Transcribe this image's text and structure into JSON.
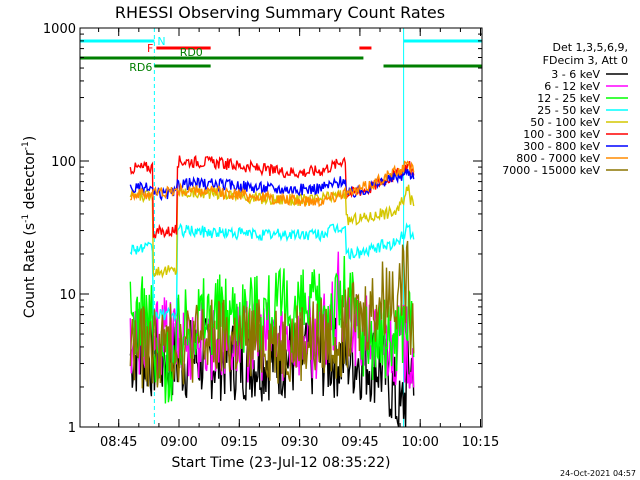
{
  "chart_data": {
    "type": "line",
    "title": "RHESSI Observing Summary Count Rates",
    "xlabel": "Start Time (23-Jul-12 08:35:22)",
    "ylabel_main": "Count Rate (s",
    "ylabel_sup1": "-1",
    "ylabel_mid": " detector",
    "ylabel_sup2": "-1",
    "ylabel_end": ")",
    "yscale": "log",
    "ylim": [
      1,
      1000
    ],
    "xlim_minutes": [
      0,
      100
    ],
    "x_ticks": [
      {
        "label": "08:45",
        "minute": 9.63
      },
      {
        "label": "09:00",
        "minute": 24.63
      },
      {
        "label": "09:15",
        "minute": 39.63
      },
      {
        "label": "09:30",
        "minute": 54.63
      },
      {
        "label": "09:45",
        "minute": 69.63
      },
      {
        "label": "10:00",
        "minute": 84.63
      },
      {
        "label": "10:15",
        "minute": 99.63
      }
    ],
    "y_ticks": [
      {
        "label": "1",
        "value": 1
      },
      {
        "label": "10",
        "value": 10
      },
      {
        "label": "100",
        "value": 100
      },
      {
        "label": "1000",
        "value": 1000
      }
    ],
    "legend_header": [
      "Det 1,3,5,6,9,",
      "FDecim 3, Att 0"
    ],
    "legend_position": "right",
    "series": [
      {
        "name": "3 - 6 keV",
        "color": "#000000",
        "points": [
          [
            12.5,
            3.5
          ],
          [
            18,
            3.3
          ],
          [
            25,
            3.2
          ],
          [
            30,
            3.3
          ],
          [
            40,
            3.2
          ],
          [
            50,
            3.3
          ],
          [
            60,
            3.3
          ],
          [
            66,
            3.4
          ],
          [
            70,
            3.2
          ],
          [
            74,
            3.0
          ],
          [
            77,
            2.2
          ],
          [
            79,
            1.4
          ],
          [
            80,
            1.2
          ],
          [
            81,
            1.6
          ],
          [
            82,
            2.5
          ],
          [
            83,
            3.0
          ]
        ]
      },
      {
        "name": "6 - 12 keV",
        "color": "#ff00ff",
        "points": [
          [
            12.5,
            4.8
          ],
          [
            18,
            4.8
          ],
          [
            25,
            4.5
          ],
          [
            30,
            4.6
          ],
          [
            40,
            4.5
          ],
          [
            50,
            4.6
          ],
          [
            60,
            4.8
          ],
          [
            64,
            6.5
          ],
          [
            65,
            10
          ],
          [
            66,
            5.5
          ],
          [
            70,
            5
          ],
          [
            74,
            4.5
          ],
          [
            77,
            4.3
          ],
          [
            80,
            4.2
          ],
          [
            82,
            3.8
          ],
          [
            83,
            3.5
          ]
        ]
      },
      {
        "name": "12 - 25 keV",
        "color": "#00ff00",
        "points": [
          [
            12.5,
            6.5
          ],
          [
            18,
            6.5
          ],
          [
            19,
            3.0
          ],
          [
            24,
            3.0
          ],
          [
            25,
            5.0
          ],
          [
            30,
            7.0
          ],
          [
            40,
            7.5
          ],
          [
            50,
            7.5
          ],
          [
            60,
            7.5
          ],
          [
            64,
            8
          ],
          [
            66,
            10
          ],
          [
            70,
            5
          ],
          [
            74,
            4.5
          ],
          [
            77,
            4.5
          ],
          [
            80,
            6
          ],
          [
            82,
            7
          ],
          [
            83,
            6
          ]
        ]
      },
      {
        "name": "25 - 50 keV",
        "color": "#00ffff",
        "points": [
          [
            12.5,
            22
          ],
          [
            18,
            22
          ],
          [
            19,
            7.0
          ],
          [
            24,
            7.0
          ],
          [
            25,
            30
          ],
          [
            35,
            29
          ],
          [
            45,
            28
          ],
          [
            55,
            28
          ],
          [
            60,
            28
          ],
          [
            62,
            30
          ],
          [
            66,
            32
          ],
          [
            67,
            20
          ],
          [
            72,
            21
          ],
          [
            75,
            23
          ],
          [
            79,
            24
          ],
          [
            81,
            30
          ],
          [
            82,
            33
          ],
          [
            83,
            28
          ]
        ]
      },
      {
        "name": "50 - 100 keV",
        "color": "#d4c700",
        "points": [
          [
            12.5,
            55
          ],
          [
            18,
            55
          ],
          [
            19,
            15
          ],
          [
            24,
            15
          ],
          [
            25,
            58
          ],
          [
            35,
            57
          ],
          [
            45,
            52
          ],
          [
            55,
            51
          ],
          [
            60,
            52
          ],
          [
            64,
            55
          ],
          [
            66,
            58
          ],
          [
            67,
            36
          ],
          [
            72,
            38
          ],
          [
            75,
            40
          ],
          [
            79,
            42
          ],
          [
            81,
            55
          ],
          [
            82,
            60
          ],
          [
            83,
            50
          ]
        ]
      },
      {
        "name": "100 - 300 keV",
        "color": "#ff0000",
        "points": [
          [
            12.5,
            88
          ],
          [
            18,
            90
          ],
          [
            19,
            29
          ],
          [
            24,
            30
          ],
          [
            25,
            100
          ],
          [
            32,
            98
          ],
          [
            40,
            92
          ],
          [
            48,
            84
          ],
          [
            55,
            82
          ],
          [
            60,
            85
          ],
          [
            64,
            95
          ],
          [
            66,
            105
          ],
          [
            67,
            57
          ],
          [
            72,
            62
          ],
          [
            75,
            70
          ],
          [
            79,
            80
          ],
          [
            81,
            90
          ],
          [
            82,
            92
          ],
          [
            83,
            85
          ]
        ]
      },
      {
        "name": "300 - 800 keV",
        "color": "#0000ff",
        "points": [
          [
            12.5,
            62
          ],
          [
            18,
            62
          ],
          [
            19,
            56
          ],
          [
            24,
            57
          ],
          [
            25,
            68
          ],
          [
            32,
            67
          ],
          [
            40,
            65
          ],
          [
            48,
            62
          ],
          [
            55,
            61
          ],
          [
            60,
            63
          ],
          [
            64,
            68
          ],
          [
            66,
            74
          ],
          [
            67,
            56
          ],
          [
            72,
            63
          ],
          [
            75,
            70
          ],
          [
            79,
            76
          ],
          [
            81,
            80
          ],
          [
            82,
            83
          ],
          [
            83,
            80
          ]
        ]
      },
      {
        "name": "800 - 7000 keV",
        "color": "#ff8c00",
        "points": [
          [
            12.5,
            56
          ],
          [
            18,
            57
          ],
          [
            19,
            58
          ],
          [
            24,
            60
          ],
          [
            25,
            60
          ],
          [
            32,
            59
          ],
          [
            40,
            56
          ],
          [
            48,
            52
          ],
          [
            55,
            50
          ],
          [
            60,
            51
          ],
          [
            64,
            55
          ],
          [
            66,
            60
          ],
          [
            67,
            56
          ],
          [
            72,
            66
          ],
          [
            75,
            74
          ],
          [
            79,
            84
          ],
          [
            81,
            90
          ],
          [
            82,
            92
          ],
          [
            83,
            90
          ]
        ]
      },
      {
        "name": "7000 - 15000 keV",
        "color": "#8b7500",
        "points": [
          [
            12.5,
            4.0
          ],
          [
            18,
            3.9
          ],
          [
            25,
            4.3
          ],
          [
            32,
            4.5
          ],
          [
            40,
            4.5
          ],
          [
            48,
            4.4
          ],
          [
            55,
            4.5
          ],
          [
            60,
            4.6
          ],
          [
            64,
            4.8
          ],
          [
            66,
            5.2
          ],
          [
            70,
            6.5
          ],
          [
            74,
            8.5
          ],
          [
            77,
            10.5
          ],
          [
            80,
            11.8
          ],
          [
            82,
            12.5
          ],
          [
            83,
            7
          ]
        ]
      }
    ],
    "flags": [
      {
        "label": "N",
        "color": "#00ffff",
        "start_minute": 0,
        "end_minute": 18.5,
        "level": 0,
        "label_at": "end"
      },
      {
        "label": "",
        "color": "#00ffff",
        "start_minute": 80.5,
        "end_minute": 100,
        "level": 0,
        "label_at": "none"
      },
      {
        "label": "F",
        "color": "#ff0000",
        "start_minute": 19,
        "end_minute": 32.5,
        "level": 1,
        "label_at": "start"
      },
      {
        "label": "",
        "color": "#ff0000",
        "start_minute": 69.5,
        "end_minute": 72.5,
        "level": 1,
        "label_at": "none"
      },
      {
        "label": "RD0",
        "color": "#007f00",
        "start_minute": 0,
        "end_minute": 70.5,
        "level": 2,
        "label_at": "middle"
      },
      {
        "label": "RD6",
        "color": "#007f00",
        "start_minute": 18.5,
        "end_minute": 32.5,
        "level": 3,
        "label_at": "before"
      },
      {
        "label": "",
        "color": "#007f00",
        "start_minute": 75.5,
        "end_minute": 100,
        "level": 3,
        "label_at": "none"
      }
    ],
    "vertical_markers": [
      {
        "minute": 0,
        "color": "#00ffff",
        "style": "solid"
      },
      {
        "minute": 18.5,
        "color": "#00ffff",
        "style": "dashed"
      },
      {
        "minute": 80.5,
        "color": "#00ffff",
        "style": "solid"
      },
      {
        "minute": 100,
        "color": "#00ffff",
        "style": "dashed"
      }
    ]
  },
  "footer_timestamp": "24-Oct-2021 04:57"
}
